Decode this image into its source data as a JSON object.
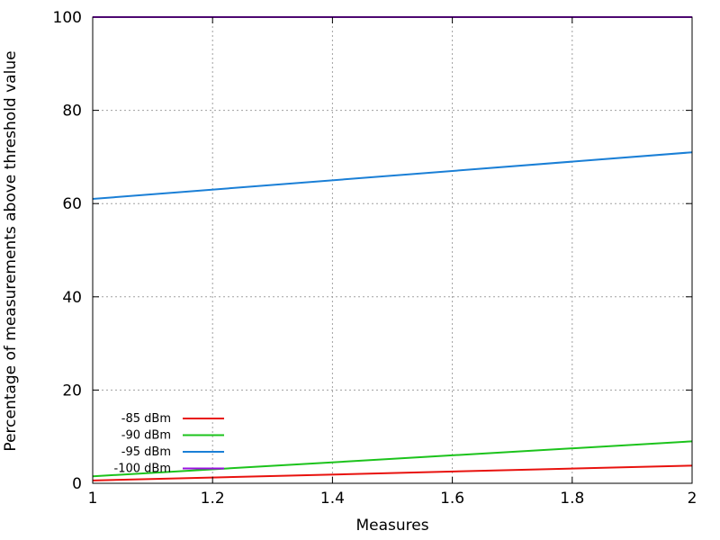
{
  "chart_data": {
    "type": "line",
    "title": "",
    "xlabel": "Measures",
    "ylabel": "Percentage of measurements above threshold value",
    "xlim": [
      1,
      2
    ],
    "ylim": [
      0,
      100
    ],
    "x_ticks": [
      1,
      1.2,
      1.4,
      1.6,
      1.8,
      2
    ],
    "x_tick_labels": [
      "1",
      "1.2",
      "1.4",
      "1.6",
      "1.8",
      "2"
    ],
    "y_ticks": [
      0,
      20,
      40,
      60,
      80,
      100
    ],
    "y_tick_labels": [
      "0",
      "20",
      "40",
      "60",
      "80",
      "100"
    ],
    "grid": true,
    "legend": "bottom-left",
    "series": [
      {
        "name": "-85 dBm",
        "color": "#e8120e",
        "x": [
          1,
          2
        ],
        "y": [
          0.6,
          3.8
        ]
      },
      {
        "name": "-90 dBm",
        "color": "#1cc31c",
        "x": [
          1,
          2
        ],
        "y": [
          1.5,
          9
        ]
      },
      {
        "name": "-95 dBm",
        "color": "#1a7fd6",
        "x": [
          1,
          2
        ],
        "y": [
          61,
          71
        ]
      },
      {
        "name": "-100 dBm",
        "color": "#9a10e0",
        "x": [
          1,
          2
        ],
        "y": [
          100,
          100
        ]
      }
    ]
  }
}
